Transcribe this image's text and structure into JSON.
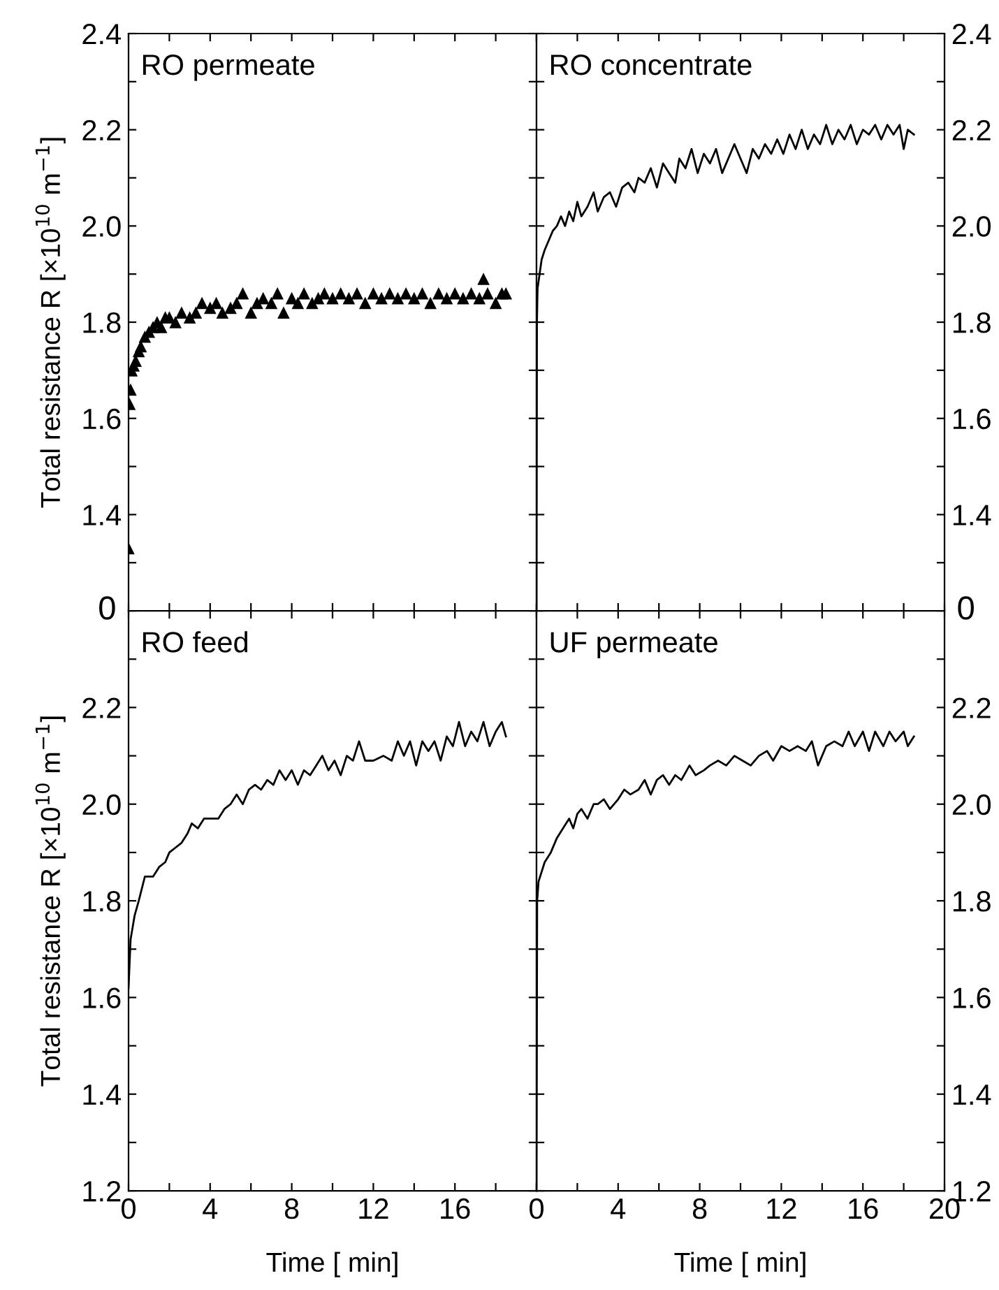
{
  "chart_data": [
    {
      "type": "scatter",
      "title": "RO permeate",
      "ylabel": "Total resistance R [×10$^{10}$ m$^{−1}$]",
      "marker": "triangle",
      "tick_labels": "y",
      "x": [
        0,
        0.05,
        0.1,
        0.15,
        0.25,
        0.35,
        0.5,
        0.6,
        0.8,
        1.0,
        1.2,
        1.4,
        1.6,
        1.8,
        2.0,
        2.3,
        2.6,
        3.0,
        3.3,
        3.6,
        4.0,
        4.3,
        4.6,
        5.0,
        5.3,
        5.6,
        6.0,
        6.3,
        6.6,
        7.0,
        7.3,
        7.6,
        8.0,
        8.3,
        8.6,
        9.0,
        9.3,
        9.6,
        10.0,
        10.4,
        10.8,
        11.2,
        11.6,
        12.0,
        12.4,
        12.8,
        13.2,
        13.6,
        14.0,
        14.4,
        14.8,
        15.2,
        15.6,
        16.0,
        16.4,
        16.8,
        17.2,
        17.4,
        17.6,
        18.0,
        18.3,
        18.5
      ],
      "series": [
        {
          "color": "#000000",
          "values": [
            1.33,
            1.63,
            1.66,
            1.7,
            1.71,
            1.72,
            1.74,
            1.75,
            1.77,
            1.78,
            1.79,
            1.8,
            1.79,
            1.81,
            1.81,
            1.8,
            1.82,
            1.81,
            1.82,
            1.84,
            1.83,
            1.84,
            1.82,
            1.83,
            1.84,
            1.86,
            1.82,
            1.84,
            1.85,
            1.84,
            1.86,
            1.82,
            1.85,
            1.84,
            1.86,
            1.84,
            1.85,
            1.86,
            1.85,
            1.86,
            1.85,
            1.86,
            1.84,
            1.86,
            1.85,
            1.86,
            1.85,
            1.86,
            1.85,
            1.86,
            1.84,
            1.86,
            1.85,
            1.86,
            1.85,
            1.86,
            1.85,
            1.89,
            1.86,
            1.84,
            1.86,
            1.86
          ]
        }
      ],
      "xlim": [
        0,
        20
      ],
      "ylim": [
        1.2,
        2.4
      ],
      "xticks": [
        {
          "value": 0,
          "label": null
        },
        {
          "value": 2,
          "label": null
        },
        {
          "value": 4,
          "label": null
        },
        {
          "value": 6,
          "label": null
        },
        {
          "value": 8,
          "label": null
        },
        {
          "value": 10,
          "label": null
        },
        {
          "value": 12,
          "label": null
        },
        {
          "value": 14,
          "label": null
        },
        {
          "value": 16,
          "label": null
        },
        {
          "value": 18,
          "label": null
        },
        {
          "value": 20,
          "label": null
        }
      ],
      "yticks": [
        {
          "value": 1.2,
          "label": null
        },
        {
          "value": 1.3,
          "label": null
        },
        1.4,
        {
          "value": 1.5,
          "label": null
        },
        1.6,
        {
          "value": 1.7,
          "label": null
        },
        1.8,
        {
          "value": 1.9,
          "label": null
        },
        {
          "value": 2.0,
          "label": "2.0"
        },
        {
          "value": 2.1,
          "label": null
        },
        2.2,
        {
          "value": 2.3,
          "label": null
        },
        2.4
      ],
      "annotations": [
        "0"
      ]
    },
    {
      "type": "line",
      "title": "RO concentrate",
      "tick_labels": "y",
      "x": [
        0,
        0.02,
        0.05,
        0.15,
        0.25,
        0.4,
        0.6,
        0.8,
        1.0,
        1.2,
        1.4,
        1.6,
        1.8,
        2.0,
        2.2,
        2.5,
        2.8,
        3.0,
        3.3,
        3.6,
        3.9,
        4.2,
        4.5,
        4.8,
        5.0,
        5.3,
        5.6,
        5.9,
        6.2,
        6.5,
        6.8,
        7.0,
        7.3,
        7.6,
        7.9,
        8.2,
        8.5,
        8.8,
        9.1,
        9.4,
        9.7,
        10.0,
        10.3,
        10.6,
        10.9,
        11.2,
        11.5,
        11.8,
        12.1,
        12.4,
        12.7,
        13.0,
        13.3,
        13.6,
        13.9,
        14.2,
        14.5,
        14.8,
        15.1,
        15.4,
        15.7,
        16.0,
        16.3,
        16.6,
        16.9,
        17.2,
        17.5,
        17.8,
        18.0,
        18.2,
        18.5
      ],
      "series": [
        {
          "color": "#000000",
          "values": [
            1.2,
            1.8,
            1.87,
            1.9,
            1.93,
            1.95,
            1.97,
            1.99,
            2.0,
            2.02,
            2.0,
            2.03,
            2.01,
            2.05,
            2.02,
            2.04,
            2.07,
            2.03,
            2.06,
            2.07,
            2.04,
            2.08,
            2.09,
            2.07,
            2.1,
            2.09,
            2.12,
            2.08,
            2.13,
            2.11,
            2.09,
            2.14,
            2.12,
            2.16,
            2.11,
            2.15,
            2.13,
            2.16,
            2.11,
            2.14,
            2.17,
            2.14,
            2.11,
            2.16,
            2.14,
            2.17,
            2.15,
            2.18,
            2.15,
            2.19,
            2.16,
            2.2,
            2.16,
            2.19,
            2.17,
            2.21,
            2.17,
            2.2,
            2.18,
            2.21,
            2.17,
            2.2,
            2.19,
            2.21,
            2.18,
            2.21,
            2.19,
            2.21,
            2.16,
            2.2,
            2.19
          ]
        }
      ],
      "xlim": [
        0,
        20
      ],
      "ylim": [
        1.2,
        2.4
      ],
      "xticks": [
        {
          "value": 0,
          "label": null
        },
        {
          "value": 2,
          "label": null
        },
        {
          "value": 4,
          "label": null
        },
        {
          "value": 6,
          "label": null
        },
        {
          "value": 8,
          "label": null
        },
        {
          "value": 10,
          "label": null
        },
        {
          "value": 12,
          "label": null
        },
        {
          "value": 14,
          "label": null
        },
        {
          "value": 16,
          "label": null
        },
        {
          "value": 18,
          "label": null
        },
        {
          "value": 20,
          "label": null
        }
      ],
      "yticks": [
        {
          "value": 1.2,
          "label": null
        },
        {
          "value": 1.3,
          "label": null
        },
        1.4,
        {
          "value": 1.5,
          "label": null
        },
        1.6,
        {
          "value": 1.7,
          "label": null
        },
        1.8,
        {
          "value": 1.9,
          "label": null
        },
        {
          "value": 2.0,
          "label": "2.0"
        },
        {
          "value": 2.1,
          "label": null
        },
        2.2,
        {
          "value": 2.3,
          "label": null
        },
        2.4
      ],
      "annotations": [
        "0"
      ]
    },
    {
      "type": "line",
      "title": "RO feed",
      "ylabel": "Total resistance R [×10$^{10}$ m$^{−1}$]",
      "xlabel": "Time [ min]",
      "x": [
        0,
        0.1,
        0.3,
        0.5,
        0.8,
        1.2,
        1.5,
        1.8,
        2.0,
        2.3,
        2.6,
        2.9,
        3.1,
        3.4,
        3.7,
        4.0,
        4.4,
        4.7,
        5.0,
        5.3,
        5.6,
        5.9,
        6.2,
        6.5,
        6.8,
        7.1,
        7.4,
        7.7,
        8.0,
        8.3,
        8.6,
        8.9,
        9.2,
        9.5,
        9.8,
        10.1,
        10.4,
        10.7,
        11.0,
        11.3,
        11.6,
        12.0,
        12.5,
        12.9,
        13.2,
        13.5,
        13.8,
        14.1,
        14.4,
        14.7,
        15.0,
        15.3,
        15.6,
        15.9,
        16.2,
        16.5,
        16.8,
        17.1,
        17.4,
        17.7,
        18.0,
        18.3,
        18.5
      ],
      "series": [
        {
          "color": "#000000",
          "values": [
            1.62,
            1.72,
            1.77,
            1.8,
            1.85,
            1.85,
            1.87,
            1.88,
            1.9,
            1.91,
            1.92,
            1.94,
            1.96,
            1.95,
            1.97,
            1.97,
            1.97,
            1.99,
            2.0,
            2.02,
            2.0,
            2.03,
            2.04,
            2.03,
            2.05,
            2.04,
            2.07,
            2.05,
            2.07,
            2.04,
            2.07,
            2.06,
            2.08,
            2.1,
            2.07,
            2.09,
            2.06,
            2.1,
            2.09,
            2.13,
            2.09,
            2.09,
            2.1,
            2.09,
            2.13,
            2.1,
            2.13,
            2.08,
            2.13,
            2.11,
            2.13,
            2.09,
            2.14,
            2.12,
            2.17,
            2.12,
            2.15,
            2.13,
            2.17,
            2.12,
            2.15,
            2.17,
            2.14
          ]
        }
      ],
      "xlim": [
        0,
        20
      ],
      "ylim": [
        1.2,
        2.4
      ],
      "xticks": [
        0,
        {
          "value": 2,
          "label": null
        },
        4,
        {
          "value": 6,
          "label": null
        },
        8,
        {
          "value": 10,
          "label": null
        },
        12,
        {
          "value": 14,
          "label": null
        },
        16,
        {
          "value": 18,
          "label": null
        },
        {
          "value": 20,
          "label": null
        }
      ],
      "yticks": [
        1.2,
        {
          "value": 1.3,
          "label": null
        },
        1.4,
        {
          "value": 1.5,
          "label": null
        },
        1.6,
        {
          "value": 1.7,
          "label": null
        },
        1.8,
        {
          "value": 1.9,
          "label": null
        },
        {
          "value": 2.0,
          "label": "2.0"
        },
        {
          "value": 2.1,
          "label": null
        },
        2.2,
        {
          "value": 2.3,
          "label": null
        },
        {
          "value": 2.4,
          "label": null
        }
      ]
    },
    {
      "type": "line",
      "title": "UF permeate",
      "xlabel": "Time [ min]",
      "x": [
        0,
        0.03,
        0.1,
        0.4,
        0.7,
        1.0,
        1.3,
        1.6,
        1.8,
        2.0,
        2.2,
        2.5,
        2.8,
        3.0,
        3.3,
        3.6,
        4.0,
        4.3,
        4.6,
        5.0,
        5.3,
        5.6,
        5.9,
        6.2,
        6.5,
        6.8,
        7.1,
        7.5,
        7.8,
        8.2,
        8.5,
        8.9,
        9.3,
        9.7,
        10.1,
        10.5,
        10.9,
        11.3,
        11.6,
        12.0,
        12.4,
        12.8,
        13.2,
        13.5,
        13.8,
        14.2,
        14.6,
        15.0,
        15.3,
        15.6,
        16.0,
        16.3,
        16.6,
        17.0,
        17.3,
        17.6,
        18.0,
        18.2,
        18.5
      ],
      "series": [
        {
          "color": "#000000",
          "values": [
            1.2,
            1.8,
            1.84,
            1.88,
            1.9,
            1.93,
            1.95,
            1.97,
            1.95,
            1.98,
            1.99,
            1.97,
            2.0,
            2.0,
            2.01,
            1.99,
            2.01,
            2.03,
            2.02,
            2.03,
            2.05,
            2.02,
            2.05,
            2.06,
            2.04,
            2.06,
            2.05,
            2.08,
            2.06,
            2.07,
            2.08,
            2.09,
            2.08,
            2.1,
            2.09,
            2.08,
            2.1,
            2.11,
            2.09,
            2.12,
            2.11,
            2.12,
            2.11,
            2.13,
            2.08,
            2.12,
            2.13,
            2.12,
            2.15,
            2.12,
            2.15,
            2.11,
            2.15,
            2.12,
            2.15,
            2.13,
            2.15,
            2.12,
            2.14
          ]
        }
      ],
      "xlim": [
        0,
        20
      ],
      "ylim": [
        1.2,
        2.4
      ],
      "xticks": [
        0,
        {
          "value": 2,
          "label": null
        },
        4,
        {
          "value": 6,
          "label": null
        },
        8,
        {
          "value": 10,
          "label": null
        },
        12,
        {
          "value": 14,
          "label": null
        },
        16,
        {
          "value": 18,
          "label": null
        },
        20
      ],
      "yticks": [
        1.2,
        {
          "value": 1.3,
          "label": null
        },
        1.4,
        {
          "value": 1.5,
          "label": null
        },
        1.6,
        {
          "value": 1.7,
          "label": null
        },
        1.8,
        {
          "value": 1.9,
          "label": null
        },
        {
          "value": 2.0,
          "label": "2.0"
        },
        {
          "value": 2.1,
          "label": null
        },
        2.2,
        {
          "value": 2.3,
          "label": null
        },
        {
          "value": 2.4,
          "label": null
        }
      ]
    }
  ]
}
